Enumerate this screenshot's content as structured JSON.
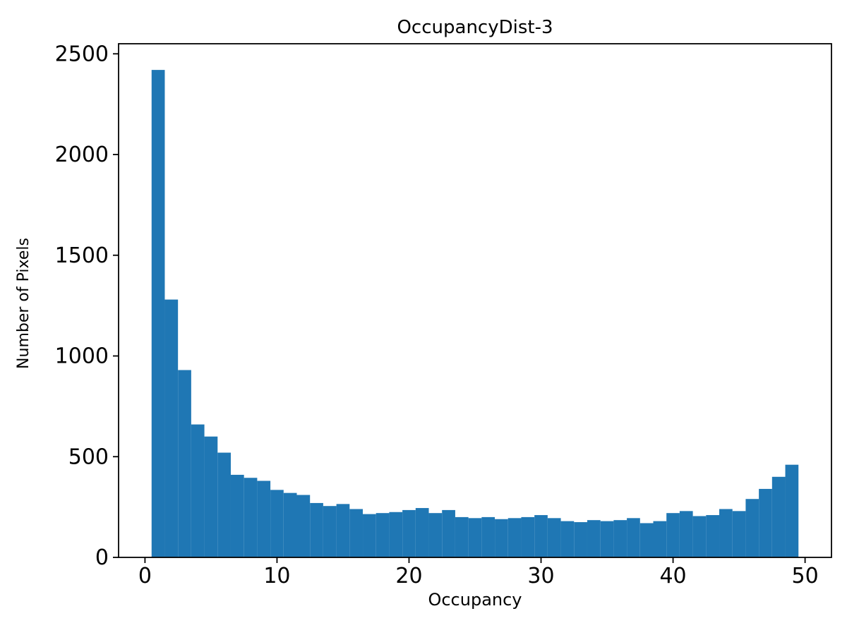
{
  "chart_data": {
    "type": "bar",
    "subtype": "histogram",
    "title": "OccupancyDist-3",
    "xlabel": "Occupancy",
    "ylabel": "Number of Pixels",
    "bar_color": "#1f77b4",
    "axis_color": "#000000",
    "background_color": "#ffffff",
    "grid": false,
    "legend": null,
    "bin_start": 0.5,
    "bin_width": 1,
    "xlim": [
      -2,
      52
    ],
    "ylim": [
      0,
      2550
    ],
    "xticks": [
      0,
      10,
      20,
      30,
      40,
      50
    ],
    "yticks": [
      0,
      500,
      1000,
      1500,
      2000,
      2500
    ],
    "values": [
      2420,
      1280,
      930,
      660,
      600,
      520,
      410,
      395,
      380,
      335,
      320,
      310,
      270,
      255,
      265,
      240,
      215,
      220,
      225,
      235,
      245,
      220,
      235,
      200,
      195,
      200,
      190,
      195,
      200,
      210,
      195,
      180,
      175,
      185,
      180,
      185,
      195,
      170,
      180,
      220,
      230,
      205,
      210,
      240,
      230,
      290,
      340,
      400,
      460
    ]
  }
}
